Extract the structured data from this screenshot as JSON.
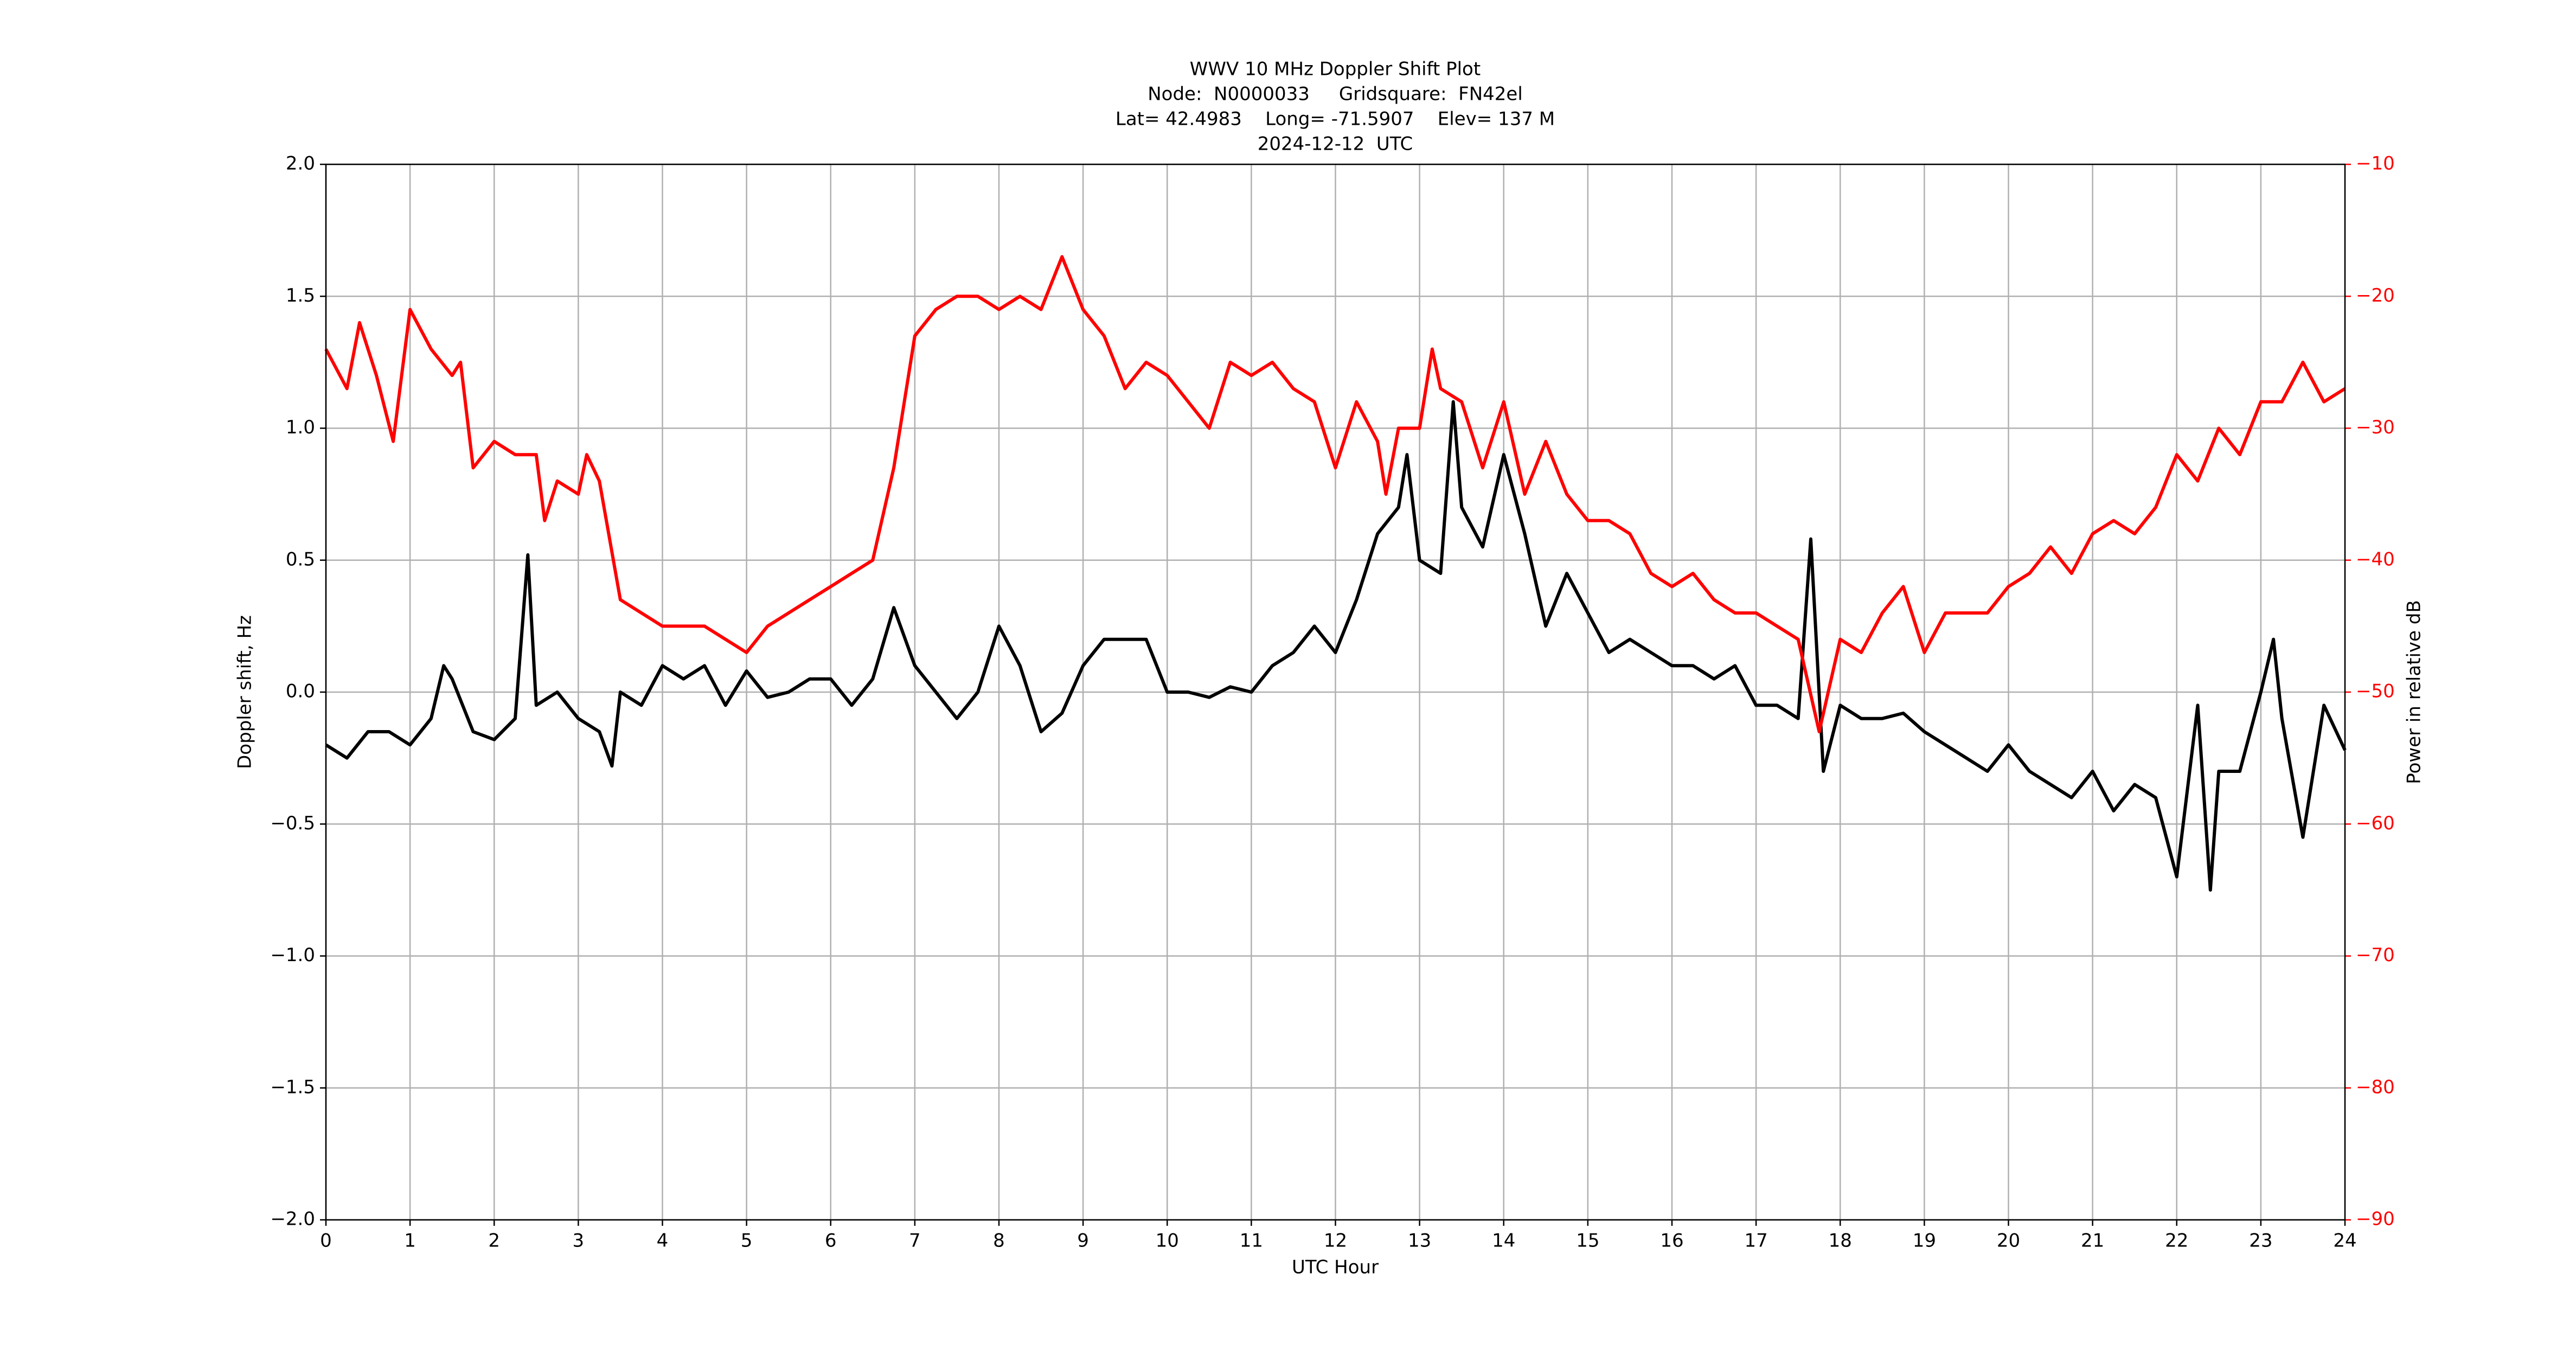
{
  "chart_data": {
    "type": "line",
    "title": [
      "WWV 10 MHz Doppler Shift Plot",
      "Node:  N0000033     Gridsquare:  FN42el",
      "Lat= 42.4983    Long= -71.5907    Elev= 137 M",
      "2024-12-12  UTC"
    ],
    "xlabel": "UTC Hour",
    "ylabel": "Doppler shift, Hz",
    "y2label": "Power in relative dB",
    "xlim": [
      0,
      24
    ],
    "xticks": [
      0,
      1,
      2,
      3,
      4,
      5,
      6,
      7,
      8,
      9,
      10,
      11,
      12,
      13,
      14,
      15,
      16,
      17,
      18,
      19,
      20,
      21,
      22,
      23,
      24
    ],
    "ylim": [
      -2.0,
      2.0
    ],
    "yticks": [
      {
        "value": -2.0,
        "label": "−2.0"
      },
      {
        "value": -1.5,
        "label": "−1.5"
      },
      {
        "value": -1.0,
        "label": "−1.0"
      },
      {
        "value": -0.5,
        "label": "−0.5"
      },
      {
        "value": 0.0,
        "label": "0.0"
      },
      {
        "value": 0.5,
        "label": "0.5"
      },
      {
        "value": 1.0,
        "label": "1.0"
      },
      {
        "value": 1.5,
        "label": "1.5"
      },
      {
        "value": 2.0,
        "label": "2.0"
      }
    ],
    "y2lim": [
      -90,
      -10
    ],
    "y2ticks": [
      {
        "value": -90,
        "label": "−90"
      },
      {
        "value": -80,
        "label": "−80"
      },
      {
        "value": -70,
        "label": "−70"
      },
      {
        "value": -60,
        "label": "−60"
      },
      {
        "value": -50,
        "label": "−50"
      },
      {
        "value": -40,
        "label": "−40"
      },
      {
        "value": -30,
        "label": "−30"
      },
      {
        "value": -20,
        "label": "−20"
      },
      {
        "value": -10,
        "label": "−10"
      }
    ],
    "y2color": "#ff0000",
    "grid": true,
    "series": [
      {
        "name": "Doppler shift",
        "color": "#000000",
        "axis": "y",
        "x": [
          0,
          0.25,
          0.5,
          0.75,
          1,
          1.25,
          1.4,
          1.5,
          1.75,
          2,
          2.25,
          2.4,
          2.5,
          2.75,
          3,
          3.25,
          3.4,
          3.5,
          3.75,
          4,
          4.25,
          4.5,
          4.75,
          5,
          5.25,
          5.5,
          5.75,
          6,
          6.25,
          6.5,
          6.75,
          7,
          7.25,
          7.5,
          7.75,
          8,
          8.25,
          8.5,
          8.75,
          9,
          9.25,
          9.5,
          9.75,
          10,
          10.25,
          10.5,
          10.75,
          11,
          11.25,
          11.5,
          11.75,
          12,
          12.25,
          12.5,
          12.75,
          12.85,
          13,
          13.25,
          13.4,
          13.5,
          13.75,
          14,
          14.25,
          14.5,
          14.75,
          15,
          15.25,
          15.5,
          15.75,
          16,
          16.25,
          16.5,
          16.75,
          17,
          17.25,
          17.5,
          17.65,
          17.8,
          18,
          18.25,
          18.5,
          18.75,
          19,
          19.25,
          19.5,
          19.75,
          20,
          20.25,
          20.5,
          20.75,
          21,
          21.25,
          21.5,
          21.75,
          22,
          22.25,
          22.4,
          22.5,
          22.75,
          23,
          23.15,
          23.25,
          23.5,
          23.75,
          24
        ],
        "values": [
          -0.2,
          -0.25,
          -0.15,
          -0.15,
          -0.2,
          -0.1,
          0.1,
          0.05,
          -0.15,
          -0.18,
          -0.1,
          0.52,
          -0.05,
          0.0,
          -0.1,
          -0.15,
          -0.28,
          0.0,
          -0.05,
          0.1,
          0.05,
          0.1,
          -0.05,
          0.08,
          -0.02,
          0.0,
          0.05,
          0.05,
          -0.05,
          0.05,
          0.32,
          0.1,
          0.0,
          -0.1,
          0.0,
          0.25,
          0.1,
          -0.15,
          -0.08,
          0.1,
          0.2,
          0.2,
          0.2,
          0.0,
          0.0,
          -0.02,
          0.02,
          0.0,
          0.1,
          0.15,
          0.25,
          0.15,
          0.35,
          0.6,
          0.7,
          0.9,
          0.5,
          0.45,
          1.1,
          0.7,
          0.55,
          0.9,
          0.6,
          0.25,
          0.45,
          0.3,
          0.15,
          0.2,
          0.15,
          0.1,
          0.1,
          0.05,
          0.1,
          -0.05,
          -0.05,
          -0.1,
          0.58,
          -0.3,
          -0.05,
          -0.1,
          -0.1,
          -0.08,
          -0.15,
          -0.2,
          -0.25,
          -0.3,
          -0.2,
          -0.3,
          -0.35,
          -0.4,
          -0.3,
          -0.45,
          -0.35,
          -0.4,
          -0.7,
          -0.05,
          -0.75,
          -0.3,
          -0.3,
          0.0,
          0.2,
          -0.1,
          -0.55,
          -0.05,
          -0.22
        ]
      },
      {
        "name": "Power",
        "color": "#ff0000",
        "axis": "y2",
        "x": [
          0,
          0.25,
          0.4,
          0.6,
          0.8,
          1,
          1.25,
          1.5,
          1.6,
          1.75,
          2,
          2.25,
          2.5,
          2.6,
          2.75,
          3,
          3.1,
          3.25,
          3.5,
          3.75,
          4,
          4.25,
          4.5,
          4.75,
          5,
          5.25,
          5.5,
          5.75,
          6,
          6.25,
          6.5,
          6.75,
          7,
          7.25,
          7.5,
          7.75,
          8,
          8.25,
          8.5,
          8.75,
          9,
          9.25,
          9.5,
          9.75,
          10,
          10.25,
          10.5,
          10.75,
          11,
          11.25,
          11.5,
          11.75,
          12,
          12.25,
          12.5,
          12.6,
          12.75,
          13,
          13.15,
          13.25,
          13.5,
          13.75,
          14,
          14.25,
          14.5,
          14.75,
          15,
          15.25,
          15.5,
          15.75,
          16,
          16.25,
          16.5,
          16.75,
          17,
          17.25,
          17.5,
          17.75,
          18,
          18.25,
          18.5,
          18.75,
          19,
          19.25,
          19.5,
          19.75,
          20,
          20.25,
          20.5,
          20.75,
          21,
          21.25,
          21.5,
          21.75,
          22,
          22.25,
          22.5,
          22.75,
          23,
          23.25,
          23.5,
          23.75,
          24
        ],
        "values": [
          -24,
          -27,
          -22,
          -26,
          -31,
          -21,
          -24,
          -26,
          -25,
          -33,
          -31,
          -32,
          -32,
          -37,
          -34,
          -35,
          -32,
          -34,
          -43,
          -44,
          -45,
          -45,
          -45,
          -46,
          -47,
          -45,
          -44,
          -43,
          -42,
          -41,
          -40,
          -33,
          -23,
          -21,
          -20,
          -20,
          -21,
          -20,
          -21,
          -17,
          -21,
          -23,
          -27,
          -25,
          -26,
          -28,
          -30,
          -25,
          -26,
          -25,
          -27,
          -28,
          -33,
          -28,
          -31,
          -35,
          -30,
          -30,
          -24,
          -27,
          -28,
          -33,
          -28,
          -35,
          -31,
          -35,
          -37,
          -37,
          -38,
          -41,
          -42,
          -41,
          -43,
          -44,
          -44,
          -45,
          -46,
          -53,
          -46,
          -47,
          -44,
          -42,
          -47,
          -44,
          -44,
          -44,
          -42,
          -41,
          -39,
          -41,
          -38,
          -37,
          -38,
          -36,
          -32,
          -34,
          -30,
          -32,
          -28,
          -28,
          -25,
          -28,
          -27
        ]
      }
    ]
  }
}
